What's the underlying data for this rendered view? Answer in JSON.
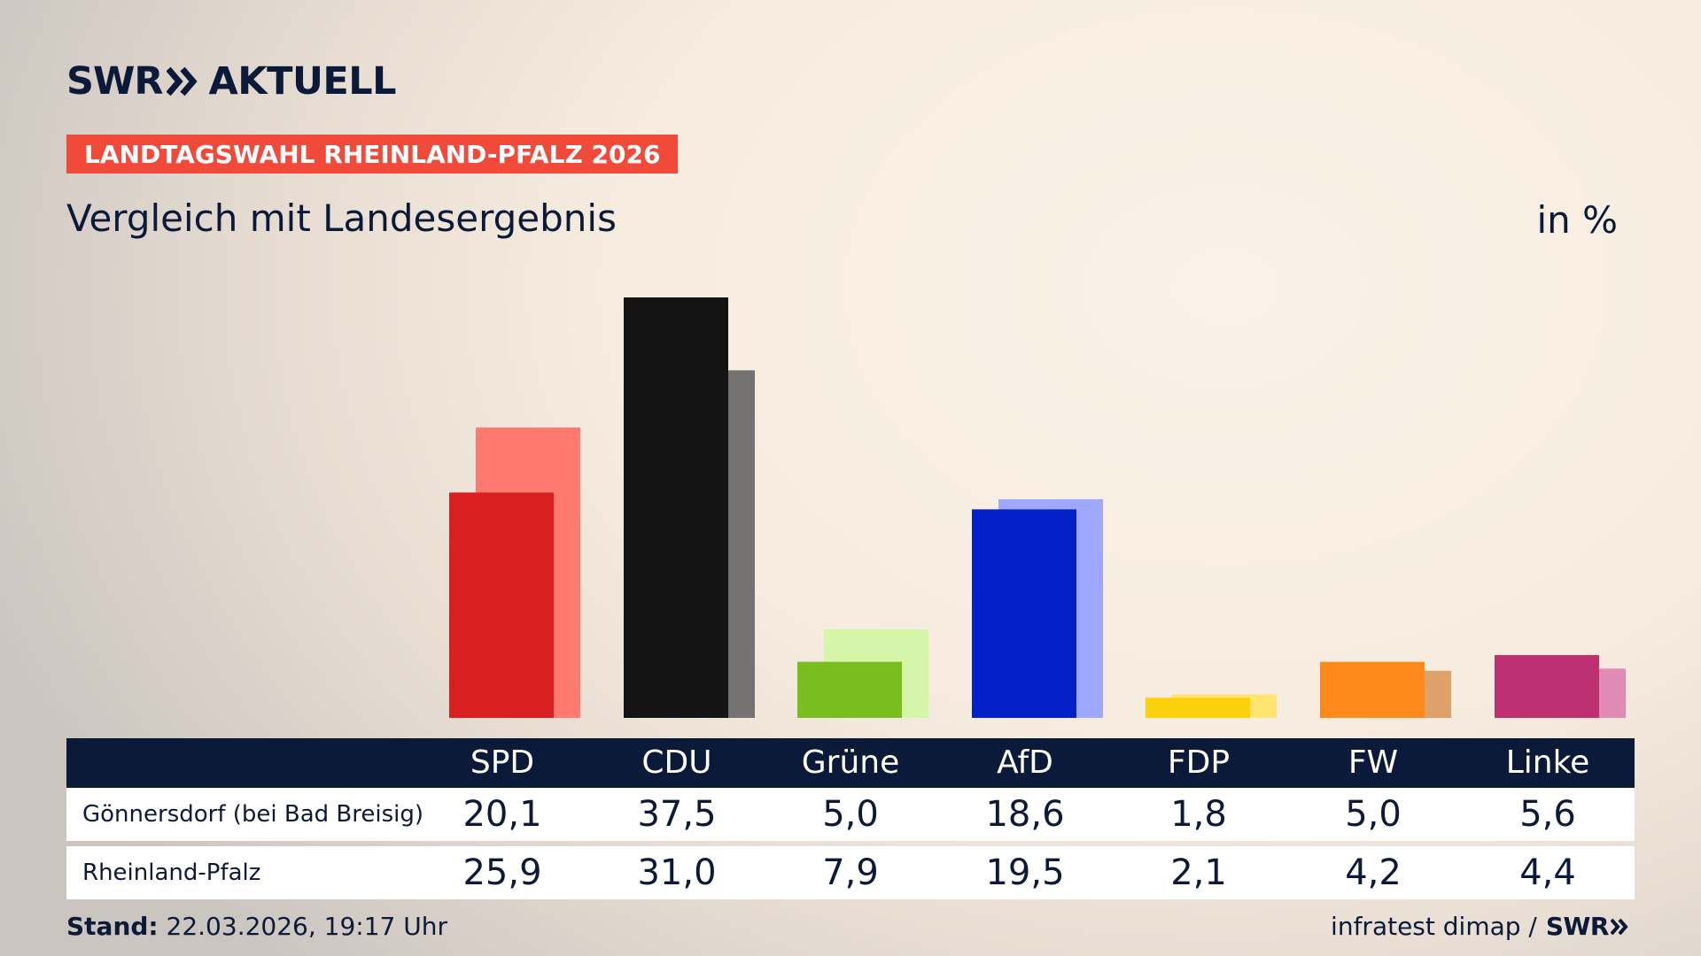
{
  "logo": {
    "left": "SWR",
    "right": "AKTUELL"
  },
  "badge": "LANDTAGSWAHL RHEINLAND-PFALZ 2026",
  "subtitle": "Vergleich mit Landesergebnis",
  "unit": "in %",
  "footer": {
    "stand_label": "Stand:",
    "stand_value": "22.03.2026, 19:17 Uhr",
    "source": "infratest dimap /",
    "source_brand": "SWR"
  },
  "table": {
    "rows": [
      {
        "label": "Gönnersdorf (bei Bad Breisig)",
        "values": [
          "20,1",
          "37,5",
          "5,0",
          "18,6",
          "1,8",
          "5,0",
          "5,6"
        ]
      },
      {
        "label": "Rheinland-Pfalz",
        "values": [
          "25,9",
          "31,0",
          "7,9",
          "19,5",
          "2,1",
          "4,2",
          "4,4"
        ]
      }
    ]
  },
  "chart_data": {
    "type": "bar",
    "categories": [
      "SPD",
      "CDU",
      "Grüne",
      "AfD",
      "FDP",
      "FW",
      "Linke"
    ],
    "series": [
      {
        "name": "Gönnersdorf (bei Bad Breisig)",
        "values": [
          20.1,
          37.5,
          5.0,
          18.6,
          1.8,
          5.0,
          5.6
        ]
      },
      {
        "name": "Rheinland-Pfalz",
        "values": [
          25.9,
          31.0,
          7.9,
          19.5,
          2.1,
          4.2,
          4.4
        ]
      }
    ],
    "colors": {
      "local": [
        "#d7201f",
        "#141414",
        "#7abd1e",
        "#0420c8",
        "#fdd00c",
        "#fe8a1b",
        "#bd3173"
      ],
      "state": [
        "#ff7970",
        "#747270",
        "#d5f5a8",
        "#9ea8fe",
        "#ffe470",
        "#dea16a",
        "#e08bb5"
      ]
    },
    "ylim": [
      0,
      37.5
    ],
    "grid": false,
    "legend": "none"
  }
}
